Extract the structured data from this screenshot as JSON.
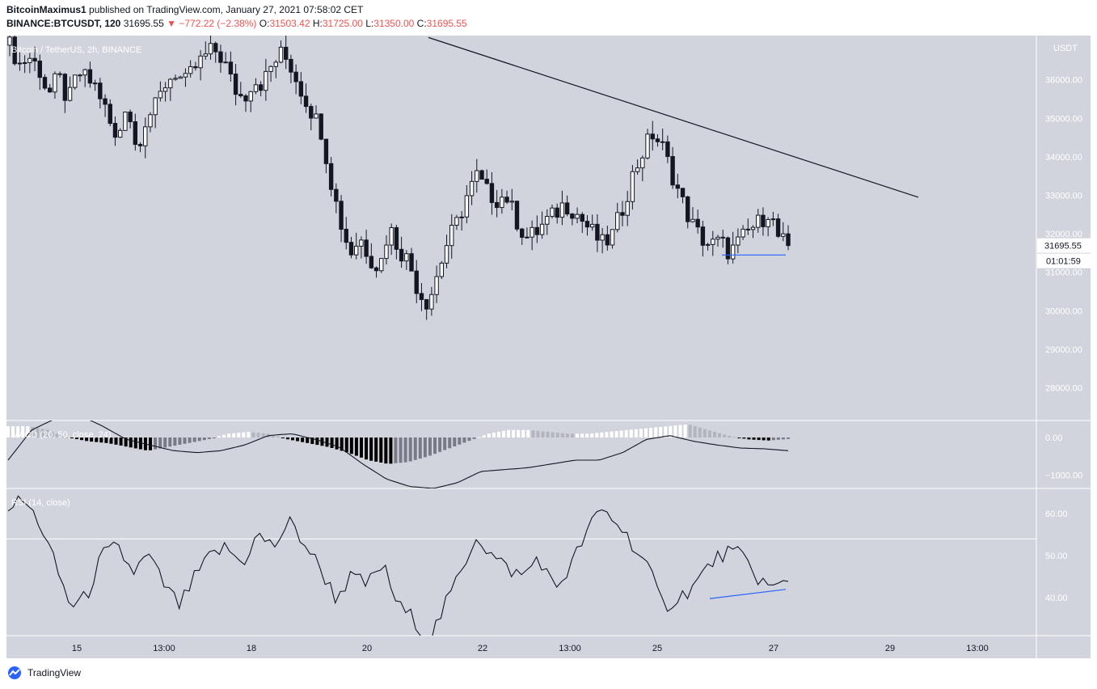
{
  "header": {
    "author": "BitcoinMaximus1",
    "published_text": "published on TradingView.com, January 27, 2021 07:58:02 CET",
    "symbol": "BINANCE:BTCUSDT, 120",
    "last": "31695.55",
    "change": "−772.22 (−2.38%)",
    "o_label": "O:",
    "o_value": "31503.42",
    "h_label": "H:",
    "h_value": "31725.00",
    "l_label": "L:",
    "l_value": "31350.00",
    "c_label": "C:",
    "c_value": "31695.55"
  },
  "footer": {
    "brand": "TradingView"
  },
  "colors": {
    "panel_bg": "#d1d4dc",
    "line": "#131722",
    "blue": "#2962ff",
    "red": "#ef5350"
  },
  "chart_data": [
    {
      "type": "candlestick",
      "title": "Bitcoin / TetherUS, 2h, BINANCE",
      "y_axis_unit": "USDT",
      "y_ticks": [
        28000,
        29000,
        30000,
        31000,
        32000,
        33000,
        34000,
        35000,
        36000
      ],
      "y_tick_labels": [
        "28000.00",
        "29000.00",
        "30000.00",
        "31000.00",
        "32000.00",
        "33000.00",
        "34000.00",
        "35000.00",
        "36000.00"
      ],
      "ylim": [
        27150,
        37150
      ],
      "x_ticks": [
        "15",
        "13:00",
        "18",
        "20",
        "22",
        "13:00",
        "25",
        "27",
        "29",
        "13:00"
      ],
      "last_price_label": "31695.55",
      "countdown_label": "01:01:59",
      "close_path": [
        36900,
        36400,
        36600,
        36300,
        35600,
        36100,
        35400,
        36200,
        36000,
        35800,
        35100,
        34300,
        35500,
        34200,
        35000,
        35300,
        35900,
        36200,
        35900,
        36300,
        36600,
        36800,
        36500,
        35800,
        35500,
        36000,
        35900,
        36400,
        36700,
        36300,
        35700,
        35200,
        34700,
        33400,
        32300,
        31500,
        31900,
        31400,
        31100,
        32200,
        31600,
        31300,
        30500,
        30200,
        31000,
        31800,
        32300,
        33000,
        33500,
        33100,
        32900,
        33000,
        32400,
        31900,
        32000,
        32300,
        32500,
        32800,
        32600,
        32300,
        32000,
        31700,
        32000,
        32700,
        33500,
        34100,
        34600,
        34300,
        33600,
        32900,
        32300,
        31900,
        31700,
        31800,
        31500,
        31800,
        32100,
        32300,
        32600,
        31900,
        31700
      ],
      "trendline": {
        "from_value": 37100,
        "to_value": 32950
      },
      "support_line_value": 31450
    },
    {
      "type": "histogram+line",
      "title": "MACD (20, 50, close, 24)",
      "y_tick_labels": [
        "0.00",
        "−1000.00"
      ],
      "ylim": [
        -1350,
        450
      ],
      "hist_path": [
        300,
        300,
        200,
        0,
        -100,
        -150,
        -250,
        -350,
        -250,
        -150,
        -50,
        100,
        150,
        100,
        -50,
        -150,
        -250,
        -400,
        -600,
        -700,
        -650,
        -500,
        -300,
        -100,
        100,
        200,
        200,
        150,
        100,
        100,
        150,
        200,
        250,
        300,
        350,
        200,
        50,
        -50,
        -80,
        -40
      ],
      "macd_path": [
        -600,
        200,
        500,
        600,
        300,
        -50,
        -200,
        -350,
        -400,
        -350,
        -200,
        50,
        100,
        -50,
        -250,
        -700,
        -1100,
        -1300,
        -1350,
        -1200,
        -900,
        -850,
        -800,
        -700,
        -600,
        -600,
        -400,
        -50,
        50,
        -100,
        -200,
        -280,
        -300,
        -350
      ]
    },
    {
      "type": "line",
      "title": "RSI (14, close)",
      "y_tick_labels": [
        "40.00",
        "50.00",
        "60.00"
      ],
      "ylim": [
        31,
        66
      ],
      "bands": [
        54,
        31
      ],
      "rsi_path": [
        62,
        63,
        58,
        48,
        38,
        40,
        50,
        52,
        46,
        50,
        43,
        38,
        45,
        50,
        52,
        48,
        55,
        52,
        58,
        53,
        47,
        40,
        45,
        43,
        48,
        38,
        35,
        30,
        38,
        46,
        55,
        50,
        47,
        45,
        50,
        42,
        47,
        55,
        61,
        58,
        53,
        47,
        38,
        40,
        43,
        48,
        51,
        50,
        45,
        42,
        44
      ]
    }
  ]
}
